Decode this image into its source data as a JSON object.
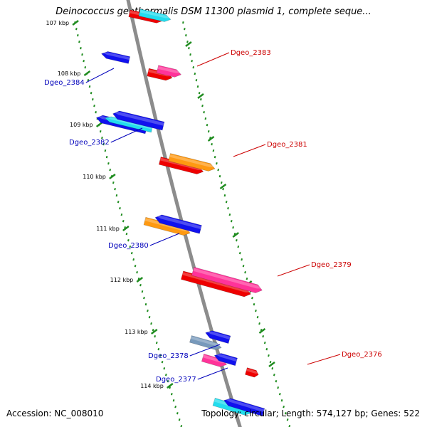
{
  "title": "Deinococcus geothermalis DSM 11300 plasmid 1, complete seque...",
  "footer": {
    "accession": "Accession: NC_008010",
    "summary": "Topology: circular; Length: 574,127 bp; Genes: 522"
  },
  "colors": {
    "backbone": "#8c8c8c",
    "scale": "#1f8c1f",
    "forward_label": "#cc0000",
    "reverse_label": "#0000bb",
    "red": "#ee0000",
    "pink": "#ff3399",
    "blue": "#1111ee",
    "cyan": "#22ddee",
    "orange": "#ff9911",
    "steel": "#7799bb"
  },
  "scale_ticks": [
    {
      "label": "107 kbp"
    },
    {
      "label": "108 kbp"
    },
    {
      "label": "109 kbp"
    },
    {
      "label": "110 kbp"
    },
    {
      "label": "111 kbp"
    },
    {
      "label": "112 kbp"
    },
    {
      "label": "113 kbp"
    },
    {
      "label": "114 kbp"
    }
  ],
  "gene_labels": [
    {
      "name": "Dgeo_2383",
      "strand": "forward"
    },
    {
      "name": "Dgeo_2384",
      "strand": "reverse"
    },
    {
      "name": "Dgeo_2381",
      "strand": "forward"
    },
    {
      "name": "Dgeo_2382",
      "strand": "reverse"
    },
    {
      "name": "Dgeo_2379",
      "strand": "forward"
    },
    {
      "name": "Dgeo_2380",
      "strand": "reverse"
    },
    {
      "name": "Dgeo_2376",
      "strand": "forward"
    },
    {
      "name": "Dgeo_2378",
      "strand": "reverse"
    },
    {
      "name": "Dgeo_2377",
      "strand": "reverse"
    }
  ]
}
